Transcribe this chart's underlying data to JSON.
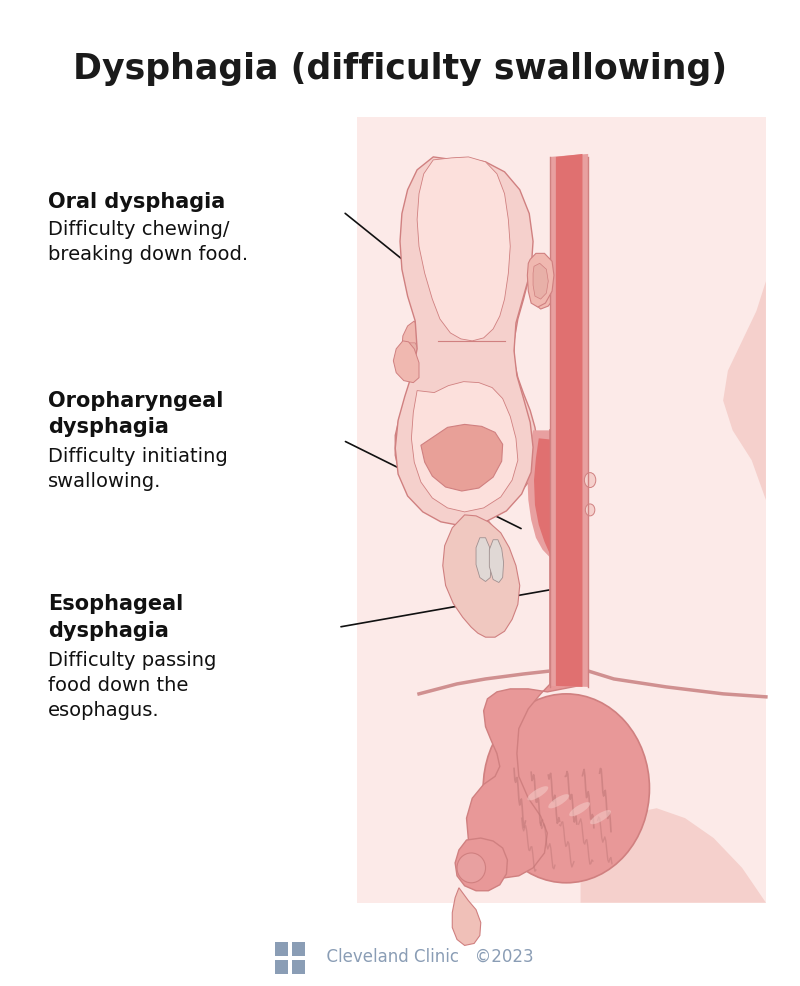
{
  "title": "Dysphagia (difficulty swallowing)",
  "title_fontsize": 25,
  "title_color": "#1a1a1a",
  "background_color": "#ffffff",
  "anatomy_bg_color": "#fceae8",
  "label1_bold": "Oral dysphagia",
  "label1_text": "Difficulty chewing/\nbreaking down food.",
  "label2_bold": "Oropharyngeal\ndysphagia",
  "label2_text": "Difficulty initiating\nswallowing.",
  "label3_bold": "Esophageal\ndysphagia",
  "label3_text": "Difficulty passing\nfood down the\nesophagus.",
  "label_fontsize": 14,
  "bold_fontsize": 15,
  "footer_text": "  Cleveland Clinic   ©2023",
  "footer_color": "#8a9db5",
  "skin_light": "#f5d0cc",
  "skin_mid": "#f0b8b0",
  "esoph_outer": "#e8a0a0",
  "esoph_inner": "#e07070",
  "esoph_dark": "#c85060",
  "stomach_fill": "#e89898",
  "stomach_dark": "#d06878",
  "line_color": "#111111",
  "outline_color": "#d08080"
}
